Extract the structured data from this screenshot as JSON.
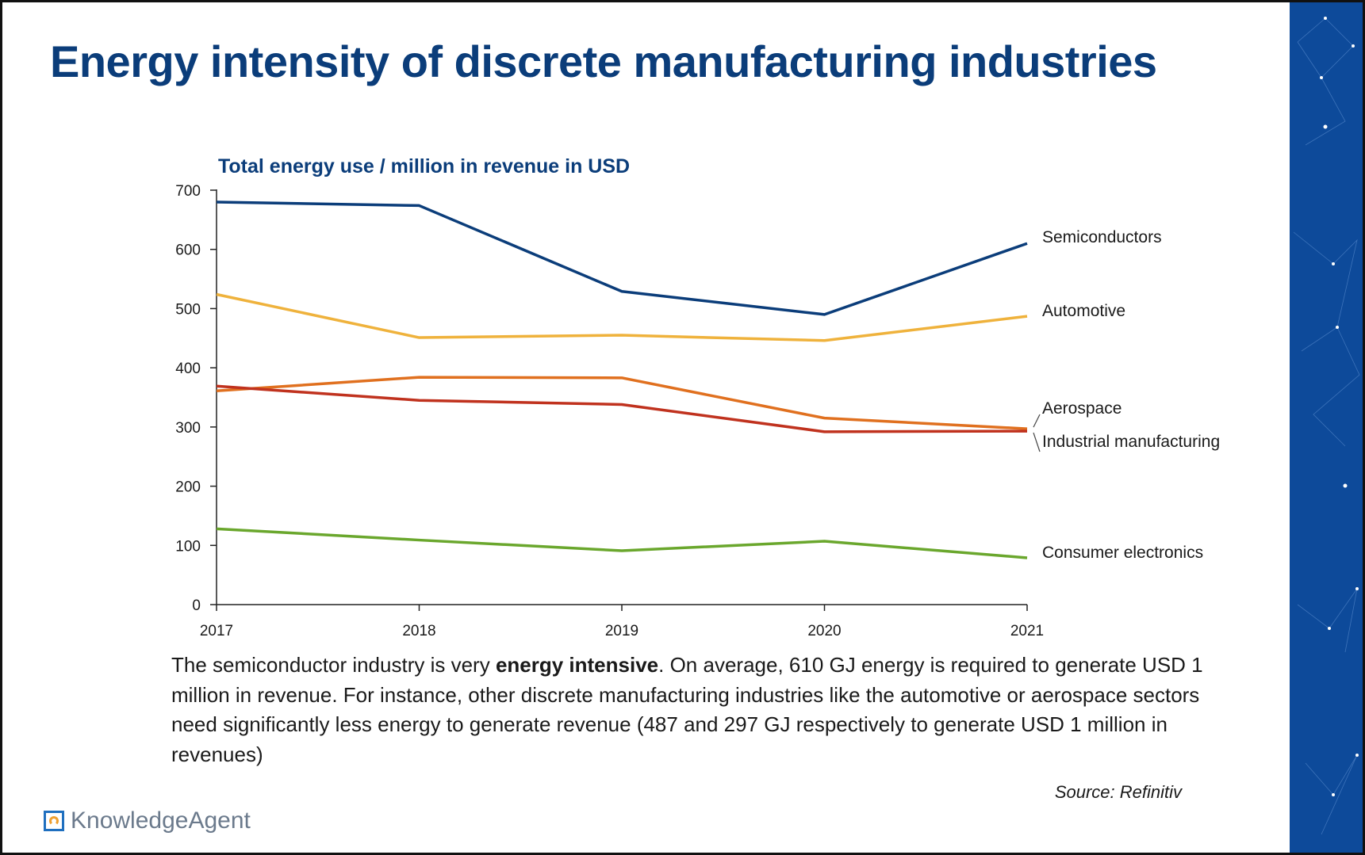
{
  "title": "Energy intensity of discrete manufacturing industries",
  "caption": {
    "part1": "The semiconductor industry is very ",
    "bold": "energy intensive",
    "part2": ". On average, 610 GJ energy is required to generate USD 1 million in revenue. For instance, other discrete manufacturing industries like the automotive or aerospace sectors need significantly less energy to generate revenue (487 and 297 GJ respectively to generate USD 1 million in revenues)"
  },
  "source": "Source: Refinitiv",
  "brand": {
    "name": "KnowledgeAgent",
    "icon": "knowledgeagent-logo-icon"
  },
  "colors": {
    "title": "#0b3d7a",
    "side_panel": "#0d4a9a"
  },
  "chart_data": {
    "type": "line",
    "title": "Total energy use / million in revenue in USD",
    "xlabel": "",
    "ylabel": "",
    "x": [
      "2017",
      "2018",
      "2019",
      "2020",
      "2021"
    ],
    "ylim": [
      0,
      700
    ],
    "yticks": [
      0,
      100,
      200,
      300,
      400,
      500,
      600,
      700
    ],
    "grid": false,
    "legend": "inline labels at line ends (right)",
    "series": [
      {
        "name": "Semiconductors",
        "color": "#0b3d7a",
        "values": [
          680,
          674,
          529,
          490,
          610
        ]
      },
      {
        "name": "Automotive",
        "color": "#efb23c",
        "values": [
          524,
          451,
          455,
          446,
          487
        ]
      },
      {
        "name": "Aerospace",
        "color": "#e0701f",
        "values": [
          361,
          384,
          383,
          315,
          297
        ]
      },
      {
        "name": "Industrial manufacturing",
        "color": "#c0321e",
        "values": [
          369,
          345,
          338,
          292,
          293
        ]
      },
      {
        "name": "Consumer electronics",
        "color": "#6aa72d",
        "values": [
          128,
          109,
          91,
          107,
          79
        ]
      }
    ]
  }
}
